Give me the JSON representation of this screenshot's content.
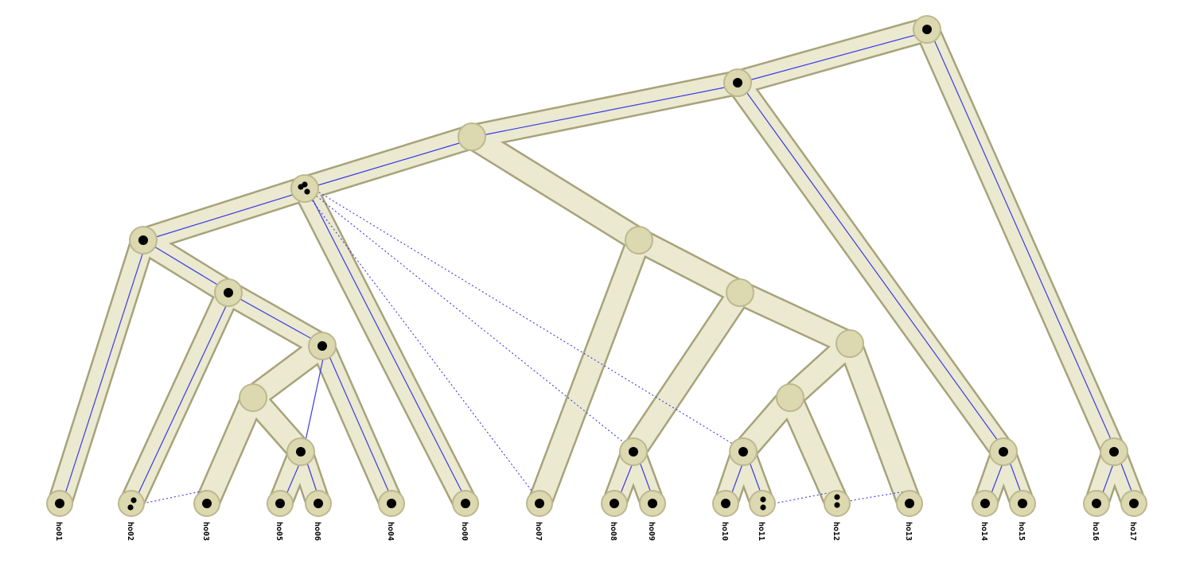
{
  "leaves": [
    "ho01",
    "ho02",
    "ho03",
    "ho05",
    "ho06",
    "ho04",
    "ho00",
    "ho07",
    "ho08",
    "ho09",
    "ho10",
    "ho11",
    "ho12",
    "ho13",
    "ho14",
    "ho15",
    "ho16",
    "ho17"
  ],
  "colors": {
    "tube_fill": "#ebe9d0",
    "tube_outline": "#a7a37a",
    "gene_line": "#3a3ae6",
    "node": "#dcd8b0",
    "dot": "#000000"
  }
}
